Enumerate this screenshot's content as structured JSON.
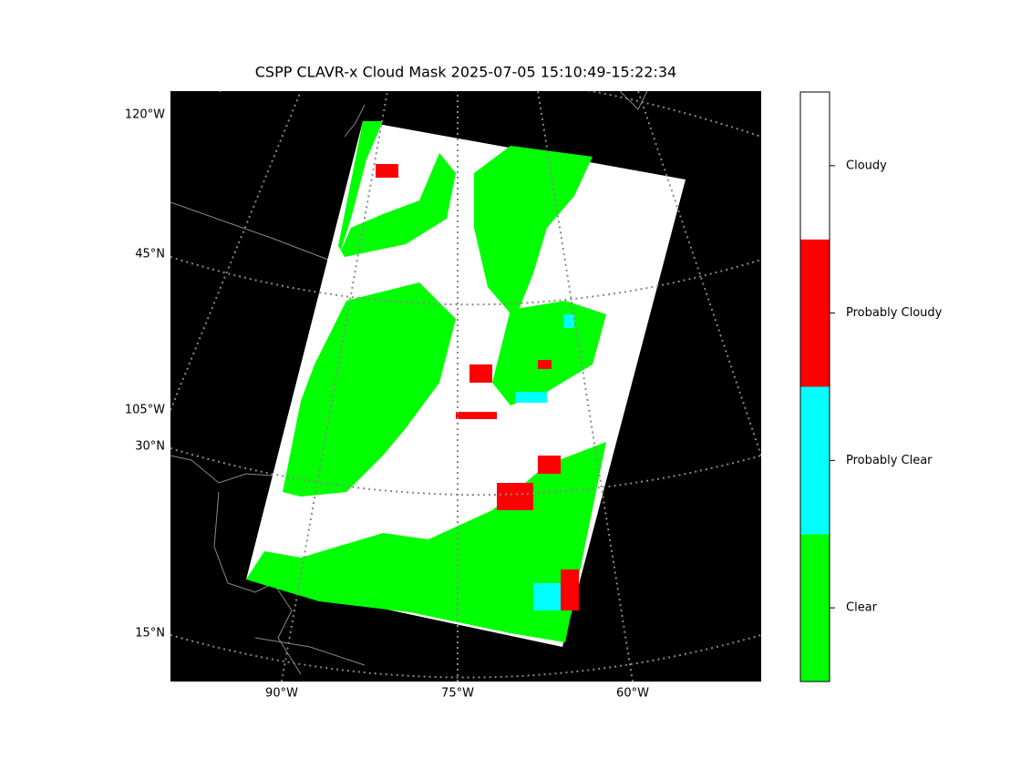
{
  "title": "CSPP CLAVR-x Cloud Mask 2025-07-05 15:10:49-15:22:34",
  "map": {
    "left_labels": [
      "120°W",
      "45°N",
      "105°W",
      "30°N",
      "15°N"
    ],
    "bottom_labels": [
      "90°W",
      "75°W",
      "60°W"
    ]
  },
  "colorbar": {
    "categories": [
      {
        "label": "Clear",
        "color": "#00ff00"
      },
      {
        "label": "Probably Clear",
        "color": "#00ffff"
      },
      {
        "label": "Probably Cloudy",
        "color": "#ff0000"
      },
      {
        "label": "Cloudy",
        "color": "#ffffff"
      }
    ]
  }
}
